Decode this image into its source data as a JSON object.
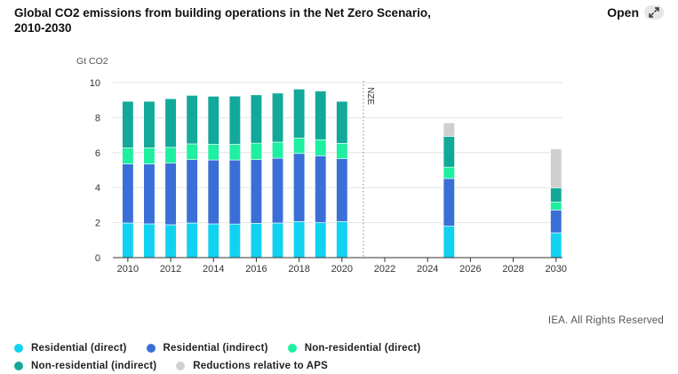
{
  "header": {
    "title_line1": "Global CO2 emissions from building operations in the Net Zero Scenario,",
    "title_line2": "2010-2030",
    "open_label": "Open",
    "open_icon": "expand-icon"
  },
  "credit": "IEA. All Rights Reserved",
  "colors": {
    "residential_direct": "#12d2f2",
    "residential_indirect": "#3a6fd8",
    "nonresidential_direct": "#1fefa0",
    "nonresidential_indirect": "#12a99a",
    "reductions": "#cfcfcf",
    "grid": "#e3e3e3",
    "axis": "#333333"
  },
  "chart_data": {
    "type": "bar",
    "stacked": true,
    "ylabel": "Gt CO2",
    "ylim": [
      0,
      10
    ],
    "yticks": [
      0,
      2,
      4,
      6,
      8,
      10
    ],
    "xlim": [
      2009.3,
      2030.3
    ],
    "xticks": [
      "2010",
      "2012",
      "2014",
      "2016",
      "2018",
      "2020",
      "2022",
      "2024",
      "2026",
      "2028",
      "2030"
    ],
    "annotation": {
      "text": "NZE",
      "x": 2021
    },
    "grid": true,
    "legend_position": "bottom",
    "x": [
      2010,
      2011,
      2012,
      2013,
      2014,
      2015,
      2016,
      2017,
      2018,
      2019,
      2020,
      2025,
      2030
    ],
    "series": [
      {
        "name": "Residential (direct)",
        "color_key": "residential_direct",
        "values": [
          1.98,
          1.93,
          1.88,
          1.98,
          1.93,
          1.92,
          1.96,
          1.98,
          2.06,
          2.0,
          2.06,
          1.8,
          1.42
        ]
      },
      {
        "name": "Residential (indirect)",
        "color_key": "residential_indirect",
        "values": [
          3.37,
          3.42,
          3.52,
          3.62,
          3.65,
          3.66,
          3.64,
          3.7,
          3.89,
          3.82,
          3.59,
          2.72,
          1.3
        ]
      },
      {
        "name": "Non-residential (direct)",
        "color_key": "nonresidential_direct",
        "values": [
          0.92,
          0.92,
          0.9,
          0.9,
          0.9,
          0.9,
          0.94,
          0.92,
          0.88,
          0.92,
          0.88,
          0.65,
          0.45
        ]
      },
      {
        "name": "Non-residential (indirect)",
        "color_key": "nonresidential_indirect",
        "values": [
          2.66,
          2.66,
          2.78,
          2.77,
          2.74,
          2.75,
          2.76,
          2.8,
          2.8,
          2.78,
          2.4,
          1.75,
          0.82
        ]
      },
      {
        "name": "Reductions relative to APS",
        "color_key": "reductions",
        "values": [
          0,
          0,
          0,
          0,
          0,
          0,
          0,
          0,
          0,
          0,
          0,
          0.78,
          2.22
        ]
      }
    ]
  }
}
